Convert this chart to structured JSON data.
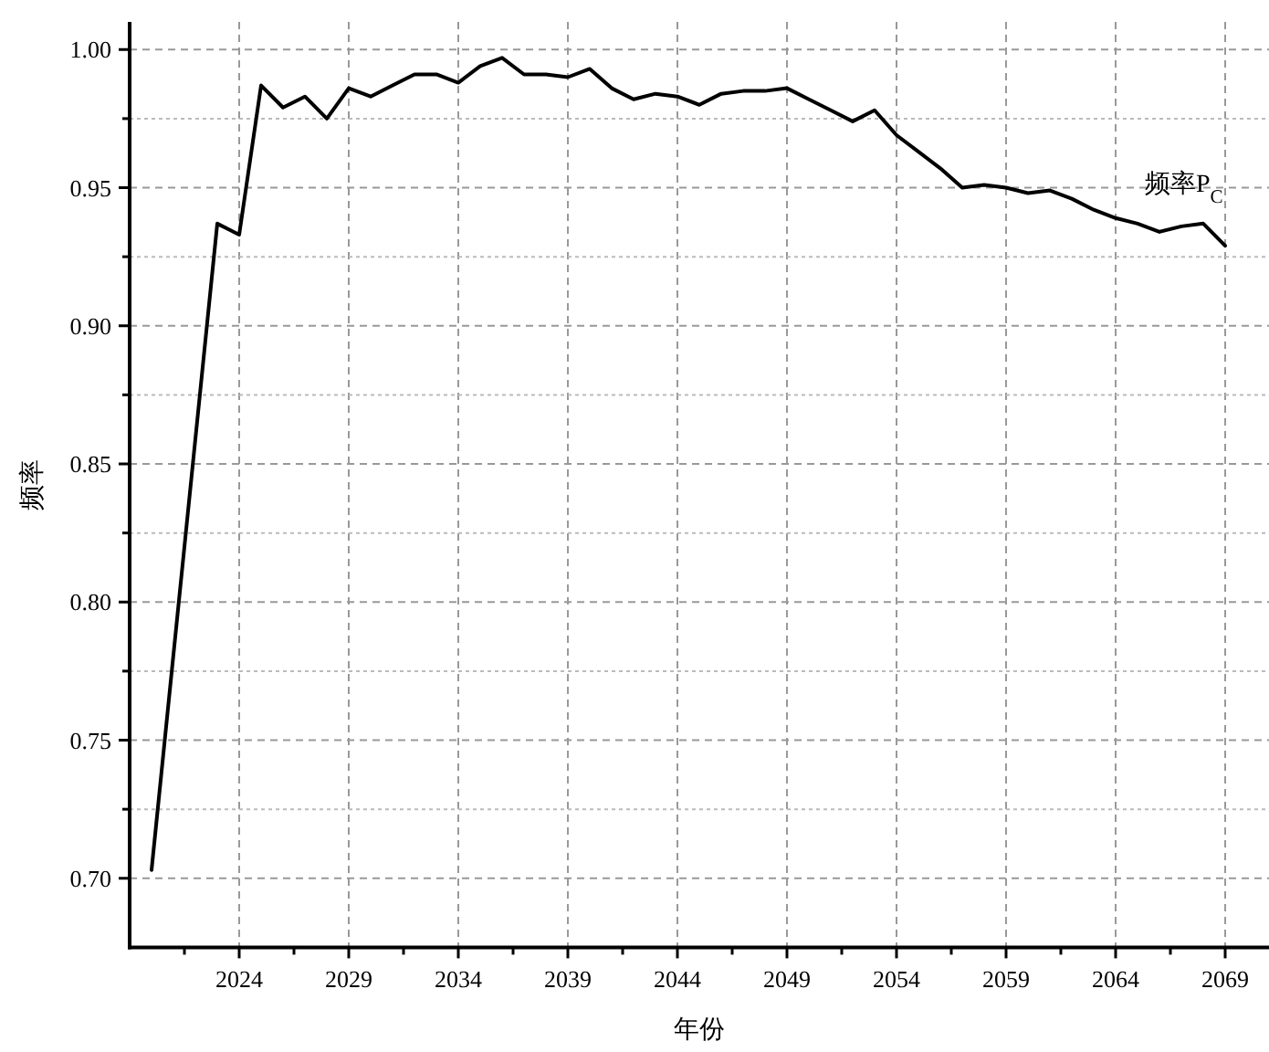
{
  "chart_data": {
    "type": "line",
    "xlabel": "年份",
    "ylabel": "频率",
    "x": [
      2020,
      2023,
      2024,
      2025,
      2026,
      2027,
      2028,
      2029,
      2030,
      2031,
      2032,
      2033,
      2034,
      2035,
      2036,
      2037,
      2038,
      2039,
      2040,
      2041,
      2042,
      2043,
      2044,
      2045,
      2046,
      2047,
      2048,
      2049,
      2050,
      2051,
      2052,
      2053,
      2054,
      2055,
      2056,
      2057,
      2058,
      2059,
      2060,
      2061,
      2062,
      2063,
      2064,
      2065,
      2066,
      2067,
      2068,
      2069
    ],
    "series": [
      {
        "name": "频率P$_{C}$",
        "color": "#000000",
        "values": [
          0.703,
          0.937,
          0.933,
          0.987,
          0.979,
          0.983,
          0.975,
          0.986,
          0.983,
          0.987,
          0.991,
          0.991,
          0.988,
          0.994,
          0.997,
          0.991,
          0.991,
          0.99,
          0.993,
          0.986,
          0.982,
          0.984,
          0.983,
          0.98,
          0.984,
          0.985,
          0.985,
          0.986,
          0.982,
          0.978,
          0.974,
          0.978,
          0.969,
          0.963,
          0.957,
          0.95,
          0.951,
          0.95,
          0.948,
          0.949,
          0.946,
          0.942,
          0.939,
          0.937,
          0.934,
          0.936,
          0.937,
          0.929
        ]
      }
    ],
    "xlim": [
      2019,
      2071
    ],
    "ylim": [
      0.675,
      1.01
    ],
    "xticks": [
      {
        "value": 2021.5,
        "label": null
      },
      2024,
      {
        "value": 2026.5,
        "label": null
      },
      2029,
      {
        "value": 2031.5,
        "label": null
      },
      2034,
      {
        "value": 2036.5,
        "label": null
      },
      2039,
      {
        "value": 2041.5,
        "label": null
      },
      2044,
      {
        "value": 2046.5,
        "label": null
      },
      2049,
      {
        "value": 2051.5,
        "label": null
      },
      2054,
      {
        "value": 2056.5,
        "label": null
      },
      2059,
      {
        "value": 2061.5,
        "label": null
      },
      2064,
      {
        "value": 2066.5,
        "label": null
      },
      2069
    ],
    "yticks": [
      {
        "value": 0.7,
        "label": "0.70"
      },
      {
        "value": 0.725,
        "label": null
      },
      {
        "value": 0.75,
        "label": "0.75"
      },
      {
        "value": 0.775,
        "label": null
      },
      {
        "value": 0.8,
        "label": "0.80"
      },
      {
        "value": 0.825,
        "label": null
      },
      {
        "value": 0.85,
        "label": "0.85"
      },
      {
        "value": 0.875,
        "label": null
      },
      {
        "value": 0.9,
        "label": "0.90"
      },
      {
        "value": 0.925,
        "label": null
      },
      {
        "value": 0.95,
        "label": "0.95"
      },
      {
        "value": 0.975,
        "label": null
      },
      {
        "value": 1.0,
        "label": "1.00"
      }
    ],
    "grid": true,
    "legend": false,
    "marker": "none",
    "line_style": "solid"
  }
}
